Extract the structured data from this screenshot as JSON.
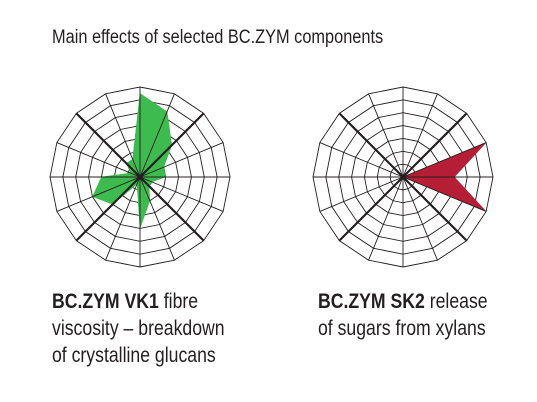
{
  "header": {
    "title": "Main effects of selected BC.ZYM components"
  },
  "colors": {
    "vk1_fill": "#3dbb4e",
    "sk2_fill": "#b51e35",
    "grid": "#231f20"
  },
  "chart_data": [
    {
      "type": "radar",
      "axes": 16,
      "rings": 7,
      "rmax": 7,
      "series": [
        {
          "values": [
            6.5,
            5.5,
            3.5,
            2,
            2,
            1,
            1,
            2,
            4,
            0.6,
            3,
            4,
            3,
            0.8,
            1.5,
            1.5
          ]
        }
      ],
      "caption": {
        "name": "BC.ZYM VK1",
        "lines": [
          "fibre",
          "viscosity – breakdown",
          "of crystalline glucans"
        ]
      }
    },
    {
      "type": "radar",
      "axes": 16,
      "rings": 7,
      "rmax": 7,
      "series": [
        {
          "values": [
            0,
            0,
            0,
            7,
            4,
            7,
            0,
            0,
            0,
            0,
            0,
            0,
            0,
            0,
            0,
            0
          ]
        }
      ],
      "caption": {
        "name": "BC.ZYM SK2",
        "lines": [
          "release",
          "of sugars from xylans"
        ]
      }
    }
  ]
}
